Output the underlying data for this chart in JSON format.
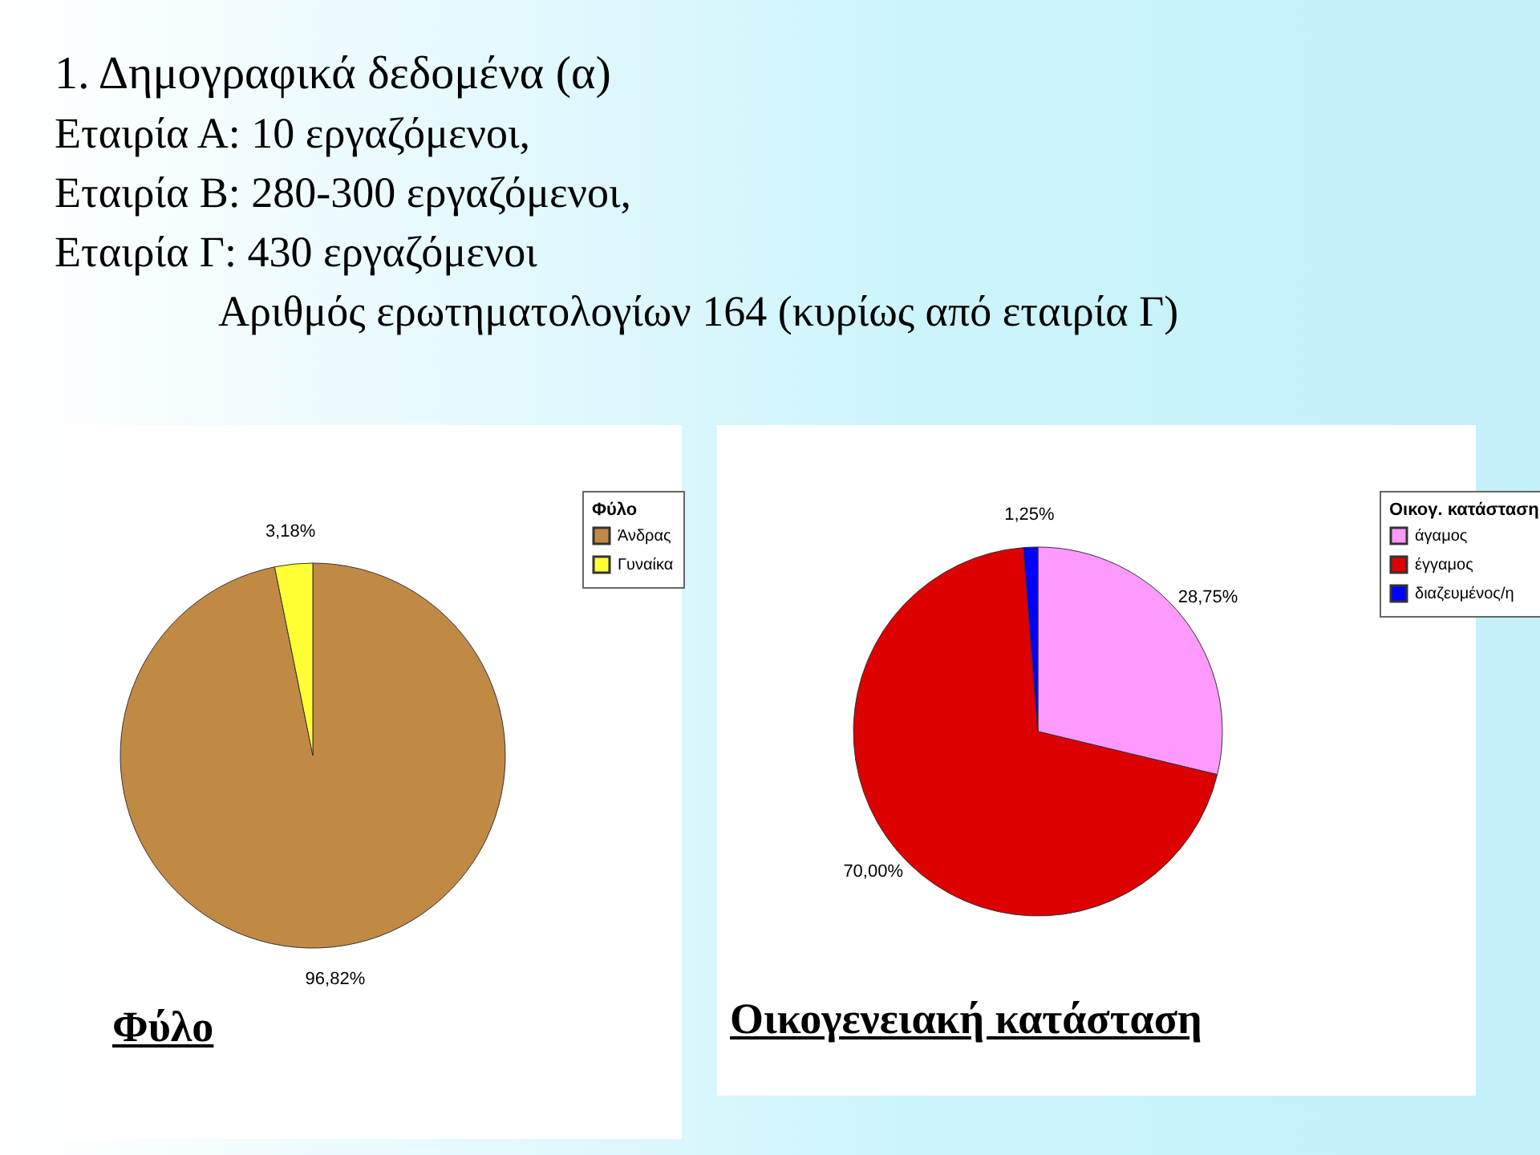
{
  "chart_data": [
    {
      "type": "pie",
      "title": "1.  Δημογραφικά δεδομένα (α)",
      "annotations": [
        "Εταιρία Α: 10 εργαζόμενοι,",
        "Εταιρία Β: 280-300 εργαζόμενοι,",
        "Εταιρία Γ: 430 εργαζόμενοι",
        "Αριθμός ερωτηματολογίων 164 (κυρίως από εταιρία Γ)"
      ],
      "xlabel": "Φύλο",
      "legend_title": "Φύλο",
      "legend": "right",
      "categories": [
        "Άνδρας",
        "Γυναίκα"
      ],
      "values": [
        96.82,
        3.18
      ],
      "colors": [
        "#c08a45",
        "#ffff33"
      ],
      "value_labels": [
        "96,82%",
        "3,18%"
      ]
    },
    {
      "type": "pie",
      "xlabel": "Οικογενειακή κατάσταση",
      "legend_title": "Οικογ. κατάσταση",
      "legend": "right",
      "categories": [
        "άγαμος",
        "έγγαμος",
        "διαζευμένος/η"
      ],
      "values": [
        28.75,
        70.0,
        1.25
      ],
      "colors": [
        "#ff99ff",
        "#dd0000",
        "#0000ff"
      ],
      "value_labels": [
        "28,75%",
        "70,00%",
        "1,25%"
      ]
    }
  ]
}
